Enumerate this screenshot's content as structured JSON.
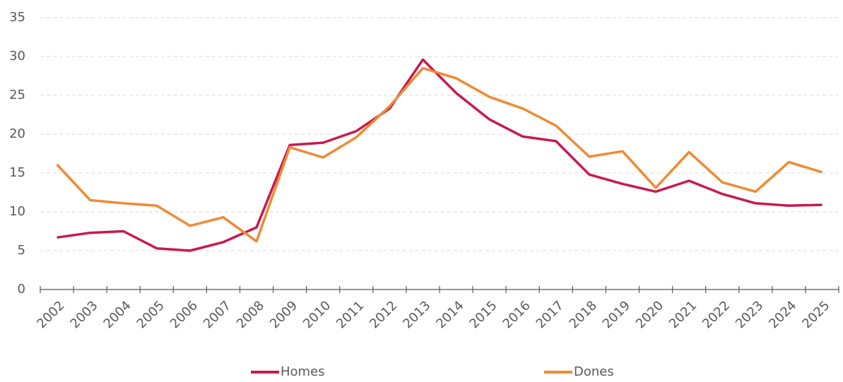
{
  "chart_data": {
    "type": "line",
    "categories": [
      "2002",
      "2003",
      "2004",
      "2005",
      "2006",
      "2007",
      "2008",
      "2009",
      "2010",
      "2011",
      "2012",
      "2013",
      "2014",
      "2015",
      "2016",
      "2017",
      "2018",
      "2019",
      "2020",
      "2021",
      "2022",
      "2023",
      "2024",
      "2025"
    ],
    "series": [
      {
        "name": "Homes",
        "color": "#c8194f",
        "values": [
          6.7,
          7.3,
          7.5,
          5.3,
          5.0,
          6.1,
          8.0,
          18.6,
          18.9,
          20.4,
          23.3,
          29.6,
          25.3,
          21.9,
          19.7,
          19.1,
          14.8,
          13.6,
          12.6,
          14.0,
          12.3,
          11.1,
          10.8,
          10.9
        ]
      },
      {
        "name": "Dones",
        "color": "#f08a33",
        "values": [
          16.1,
          11.5,
          11.1,
          10.8,
          8.2,
          9.3,
          6.2,
          18.3,
          17.0,
          19.6,
          23.6,
          28.5,
          27.2,
          24.8,
          23.3,
          21.1,
          17.1,
          17.8,
          13.1,
          17.7,
          13.8,
          12.6,
          16.4,
          15.1
        ]
      }
    ],
    "ylim": [
      0,
      35
    ],
    "yticks": [
      0,
      5,
      10,
      15,
      20,
      25,
      30,
      35
    ],
    "grid": true,
    "legend": "bottom"
  }
}
